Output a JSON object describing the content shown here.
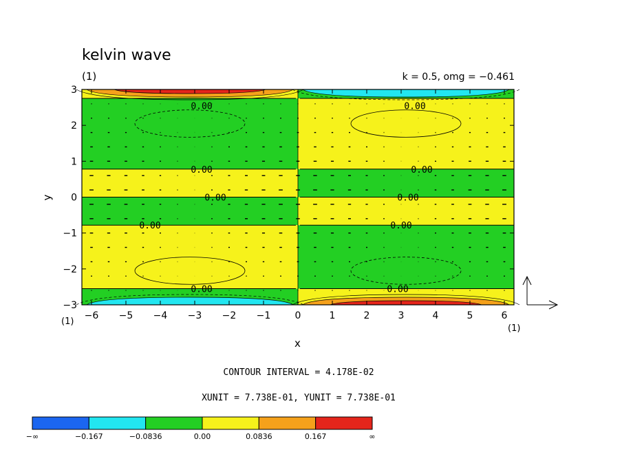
{
  "header": {
    "title": "kelvin wave",
    "subtitle": "(1)",
    "params": "k = 0.5, omg = −0.461"
  },
  "info": {
    "contour_interval": "CONTOUR INTERVAL = 4.178E-02",
    "units": "XUNIT = 7.738E-01, YUNIT = 7.738E-01"
  },
  "axis_scale": {
    "left": "(1)",
    "right": "(1)"
  },
  "colors": {
    "neg_inf": "#1b66f0",
    "neg_mid": "#22e6f0",
    "neg_low": "#23cf23",
    "pos_low": "#f6f21b",
    "pos_mid": "#f5a11b",
    "pos_high": "#e4251b"
  },
  "chart_data": {
    "type": "heatmap",
    "title": "kelvin wave",
    "xlabel": "x",
    "ylabel": "y",
    "xlim": [
      -6.28,
      6.28
    ],
    "ylim": [
      -3,
      3
    ],
    "x_ticks": [
      -6,
      -5,
      -4,
      -3,
      -2,
      -1,
      0,
      1,
      2,
      3,
      4,
      5,
      6
    ],
    "y_ticks": [
      -3,
      -2,
      -1,
      0,
      1,
      2,
      3
    ],
    "x_tick_labels": [
      "−6",
      "−5",
      "−4",
      "−3",
      "−2",
      "−1",
      "0",
      "1",
      "2",
      "3",
      "4",
      "5",
      "6"
    ],
    "y_tick_labels": [
      "−3",
      "−2",
      "−1",
      "0",
      "1",
      "2",
      "3"
    ],
    "bands": [
      {
        "y0": 2.75,
        "y1": 3.0,
        "left": "pos_low",
        "right": "neg_low"
      },
      {
        "y0": 0.78,
        "y1": 2.75,
        "left": "neg_low",
        "right": "pos_low"
      },
      {
        "y0": 0.0,
        "y1": 0.78,
        "left": "pos_low",
        "right": "neg_low"
      },
      {
        "y0": -0.78,
        "y1": 0.0,
        "left": "neg_low",
        "right": "pos_low"
      },
      {
        "y0": -2.55,
        "y1": -0.78,
        "left": "pos_low",
        "right": "neg_low"
      },
      {
        "y0": -3.0,
        "y1": -2.55,
        "left": "neg_low",
        "right": "pos_low"
      }
    ],
    "edge_peaks": [
      {
        "x": -3.14,
        "edge": "top",
        "levels": [
          "pos_mid",
          "pos_high"
        ]
      },
      {
        "x": 3.14,
        "edge": "top",
        "levels": [
          "neg_mid"
        ]
      },
      {
        "x": -3.14,
        "edge": "bottom",
        "levels": [
          "neg_mid"
        ]
      },
      {
        "x": 3.14,
        "edge": "bottom",
        "levels": [
          "pos_mid",
          "pos_high"
        ]
      }
    ],
    "contour_labels": [
      {
        "x": -2.8,
        "y": 2.55,
        "text": "0.00"
      },
      {
        "x": 3.4,
        "y": 2.55,
        "text": "0.00"
      },
      {
        "x": -2.8,
        "y": 0.78,
        "text": "0.00"
      },
      {
        "x": 3.6,
        "y": 0.78,
        "text": "0.00"
      },
      {
        "x": -2.4,
        "y": 0.0,
        "text": "0.00"
      },
      {
        "x": 3.2,
        "y": 0.0,
        "text": "0.00"
      },
      {
        "x": -4.3,
        "y": -0.78,
        "text": "0.00"
      },
      {
        "x": 3.0,
        "y": -0.78,
        "text": "0.00"
      },
      {
        "x": -2.8,
        "y": -2.55,
        "text": "0.00"
      },
      {
        "x": 2.9,
        "y": -2.55,
        "text": "0.00"
      }
    ],
    "ellipses": [
      {
        "cx": -3.14,
        "cy": 2.05,
        "rx": 1.6,
        "ry": 0.38,
        "dashed": true
      },
      {
        "cx": 3.14,
        "cy": 2.05,
        "rx": 1.6,
        "ry": 0.38,
        "dashed": false
      },
      {
        "cx": -3.14,
        "cy": -2.05,
        "rx": 1.6,
        "ry": 0.38,
        "dashed": false
      },
      {
        "cx": 3.14,
        "cy": -2.05,
        "rx": 1.6,
        "ry": 0.38,
        "dashed": true
      }
    ],
    "legend": {
      "type": "colorbar",
      "levels": [
        "neg_inf",
        "neg_mid",
        "neg_low",
        "pos_low",
        "pos_mid",
        "pos_high"
      ],
      "labels": [
        "−∞",
        "−0.167",
        "−0.0836",
        "0.00",
        "0.0836",
        "0.167",
        "∞"
      ]
    }
  }
}
